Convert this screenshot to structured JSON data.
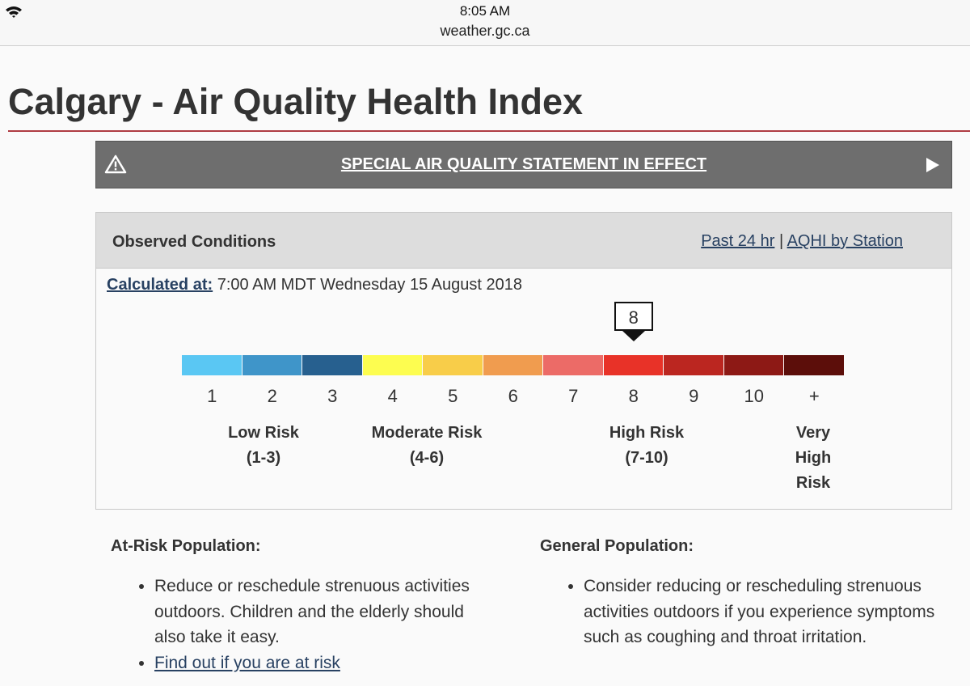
{
  "status_bar": {
    "time": "8:05 AM",
    "url": "weather.gc.ca"
  },
  "page_title": "Calgary - Air Quality Health Index",
  "alert": "SPECIAL AIR QUALITY STATEMENT IN EFFECT",
  "observed": {
    "heading": "Observed Conditions",
    "links": [
      "Past 24 hr",
      "AQHI by Station"
    ],
    "separator": "|",
    "calculated_label": "Calculated at:",
    "calculated_time": "7:00 AM MDT Wednesday 15 August 2018",
    "current": "8",
    "scale": [
      {
        "label": "1",
        "color": "#5ac7f3"
      },
      {
        "label": "2",
        "color": "#3f95c9"
      },
      {
        "label": "3",
        "color": "#27608f"
      },
      {
        "label": "4",
        "color": "#fdfd50"
      },
      {
        "label": "5",
        "color": "#f8cd49"
      },
      {
        "label": "6",
        "color": "#f09c4f"
      },
      {
        "label": "7",
        "color": "#ec6b67"
      },
      {
        "label": "8",
        "color": "#e83228"
      },
      {
        "label": "9",
        "color": "#bb2620"
      },
      {
        "label": "10",
        "color": "#8d1915"
      },
      {
        "label": "+",
        "color": "#5c0e0a"
      }
    ],
    "risk_groups": [
      {
        "lines": [
          "Low Risk",
          "(1-3)"
        ]
      },
      {
        "lines": [
          "Moderate Risk",
          "(4-6)"
        ]
      },
      {
        "lines": [
          "High Risk",
          "(7-10)"
        ]
      },
      {
        "lines": [
          "Very",
          "High",
          "Risk"
        ]
      }
    ]
  },
  "advice": [
    {
      "heading": "At-Risk Population:",
      "items": [
        "Reduce or reschedule strenuous activities outdoors. Children and the elderly should also take it easy."
      ],
      "link": "Find out if you are at risk"
    },
    {
      "heading": "General Population:",
      "items": [
        "Consider reducing or rescheduling strenuous activities outdoors if you experience symptoms such as coughing and throat irritation."
      ]
    }
  ]
}
